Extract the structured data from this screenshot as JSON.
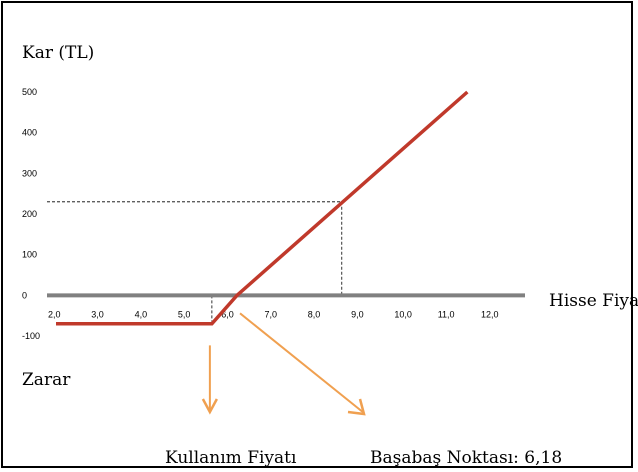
{
  "chart_data": {
    "type": "line",
    "ylabel": "Kar (TL)",
    "xlabel": "Hisse Fiyatı",
    "loss_label": "Zarar",
    "x_ticks": [
      "2,0",
      "3,0",
      "4,0",
      "5,0",
      "6,0",
      "7,0",
      "8,0",
      "9,0",
      "10,0",
      "11,0",
      "12,0"
    ],
    "y_ticks": [
      "500",
      "400",
      "300",
      "200",
      "100",
      "0",
      "-100"
    ],
    "ylim": [
      -100,
      500
    ],
    "xlim": [
      2,
      12.5
    ],
    "series": [
      {
        "x": [
          2.0,
          5.6,
          6.18,
          11.5
        ],
        "y": [
          -70,
          -70,
          0,
          500
        ],
        "color": "#c0392b"
      }
    ],
    "guide_point": {
      "x": 8.6,
      "y": 230
    },
    "strike_marker_x": 5.6,
    "annotations": [
      {
        "text": "Kullanım Fiyatı",
        "color": "#f0a050"
      },
      {
        "text": "Başabaş Noktası: 6,18",
        "color": "#f0a050"
      }
    ],
    "grid": false
  }
}
